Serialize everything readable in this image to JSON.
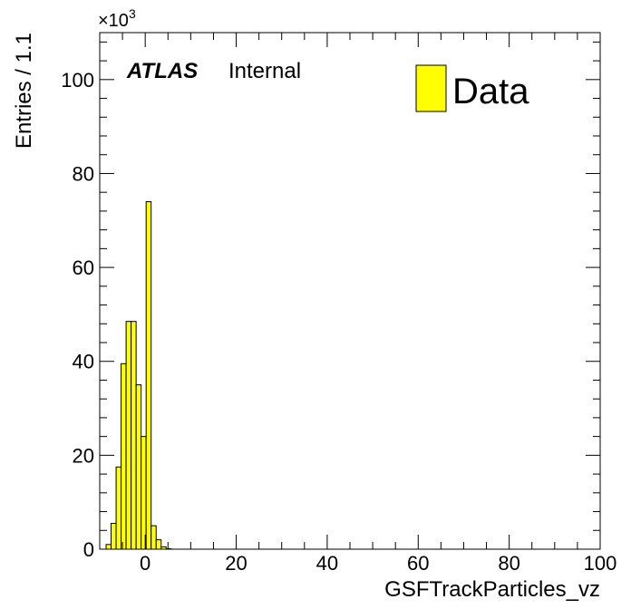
{
  "chart_data": {
    "type": "bar",
    "title": "",
    "xlabel": "GSFTrackParticles_vz",
    "ylabel": "Entries / 1.1",
    "xlim": [
      -10,
      100
    ],
    "ylim": [
      0,
      110
    ],
    "y_multiplier": {
      "base": "×10",
      "exponent": "3"
    },
    "x_ticks": [
      0,
      20,
      40,
      60,
      80,
      100
    ],
    "x_tick_labels": [
      "0",
      "20",
      "40",
      "60",
      "80",
      "100"
    ],
    "y_ticks": [
      0,
      20,
      40,
      60,
      80,
      100
    ],
    "y_tick_labels": [
      "0",
      "20",
      "40",
      "60",
      "80",
      "100"
    ],
    "bin_width": 1.1,
    "bin_start": -8.6,
    "values": [
      1.0,
      5.5,
      17.5,
      39.5,
      48.5,
      48.5,
      35.0,
      24.0,
      74.0,
      5.0,
      2.0,
      0.5,
      0.1
    ],
    "grid": false,
    "legend_position": "top-right",
    "series": [
      {
        "name": "Data",
        "color": "#ffff00",
        "edge_color": "#000000"
      }
    ]
  },
  "labels": {
    "atlas": "ATLAS",
    "internal": "Internal"
  }
}
